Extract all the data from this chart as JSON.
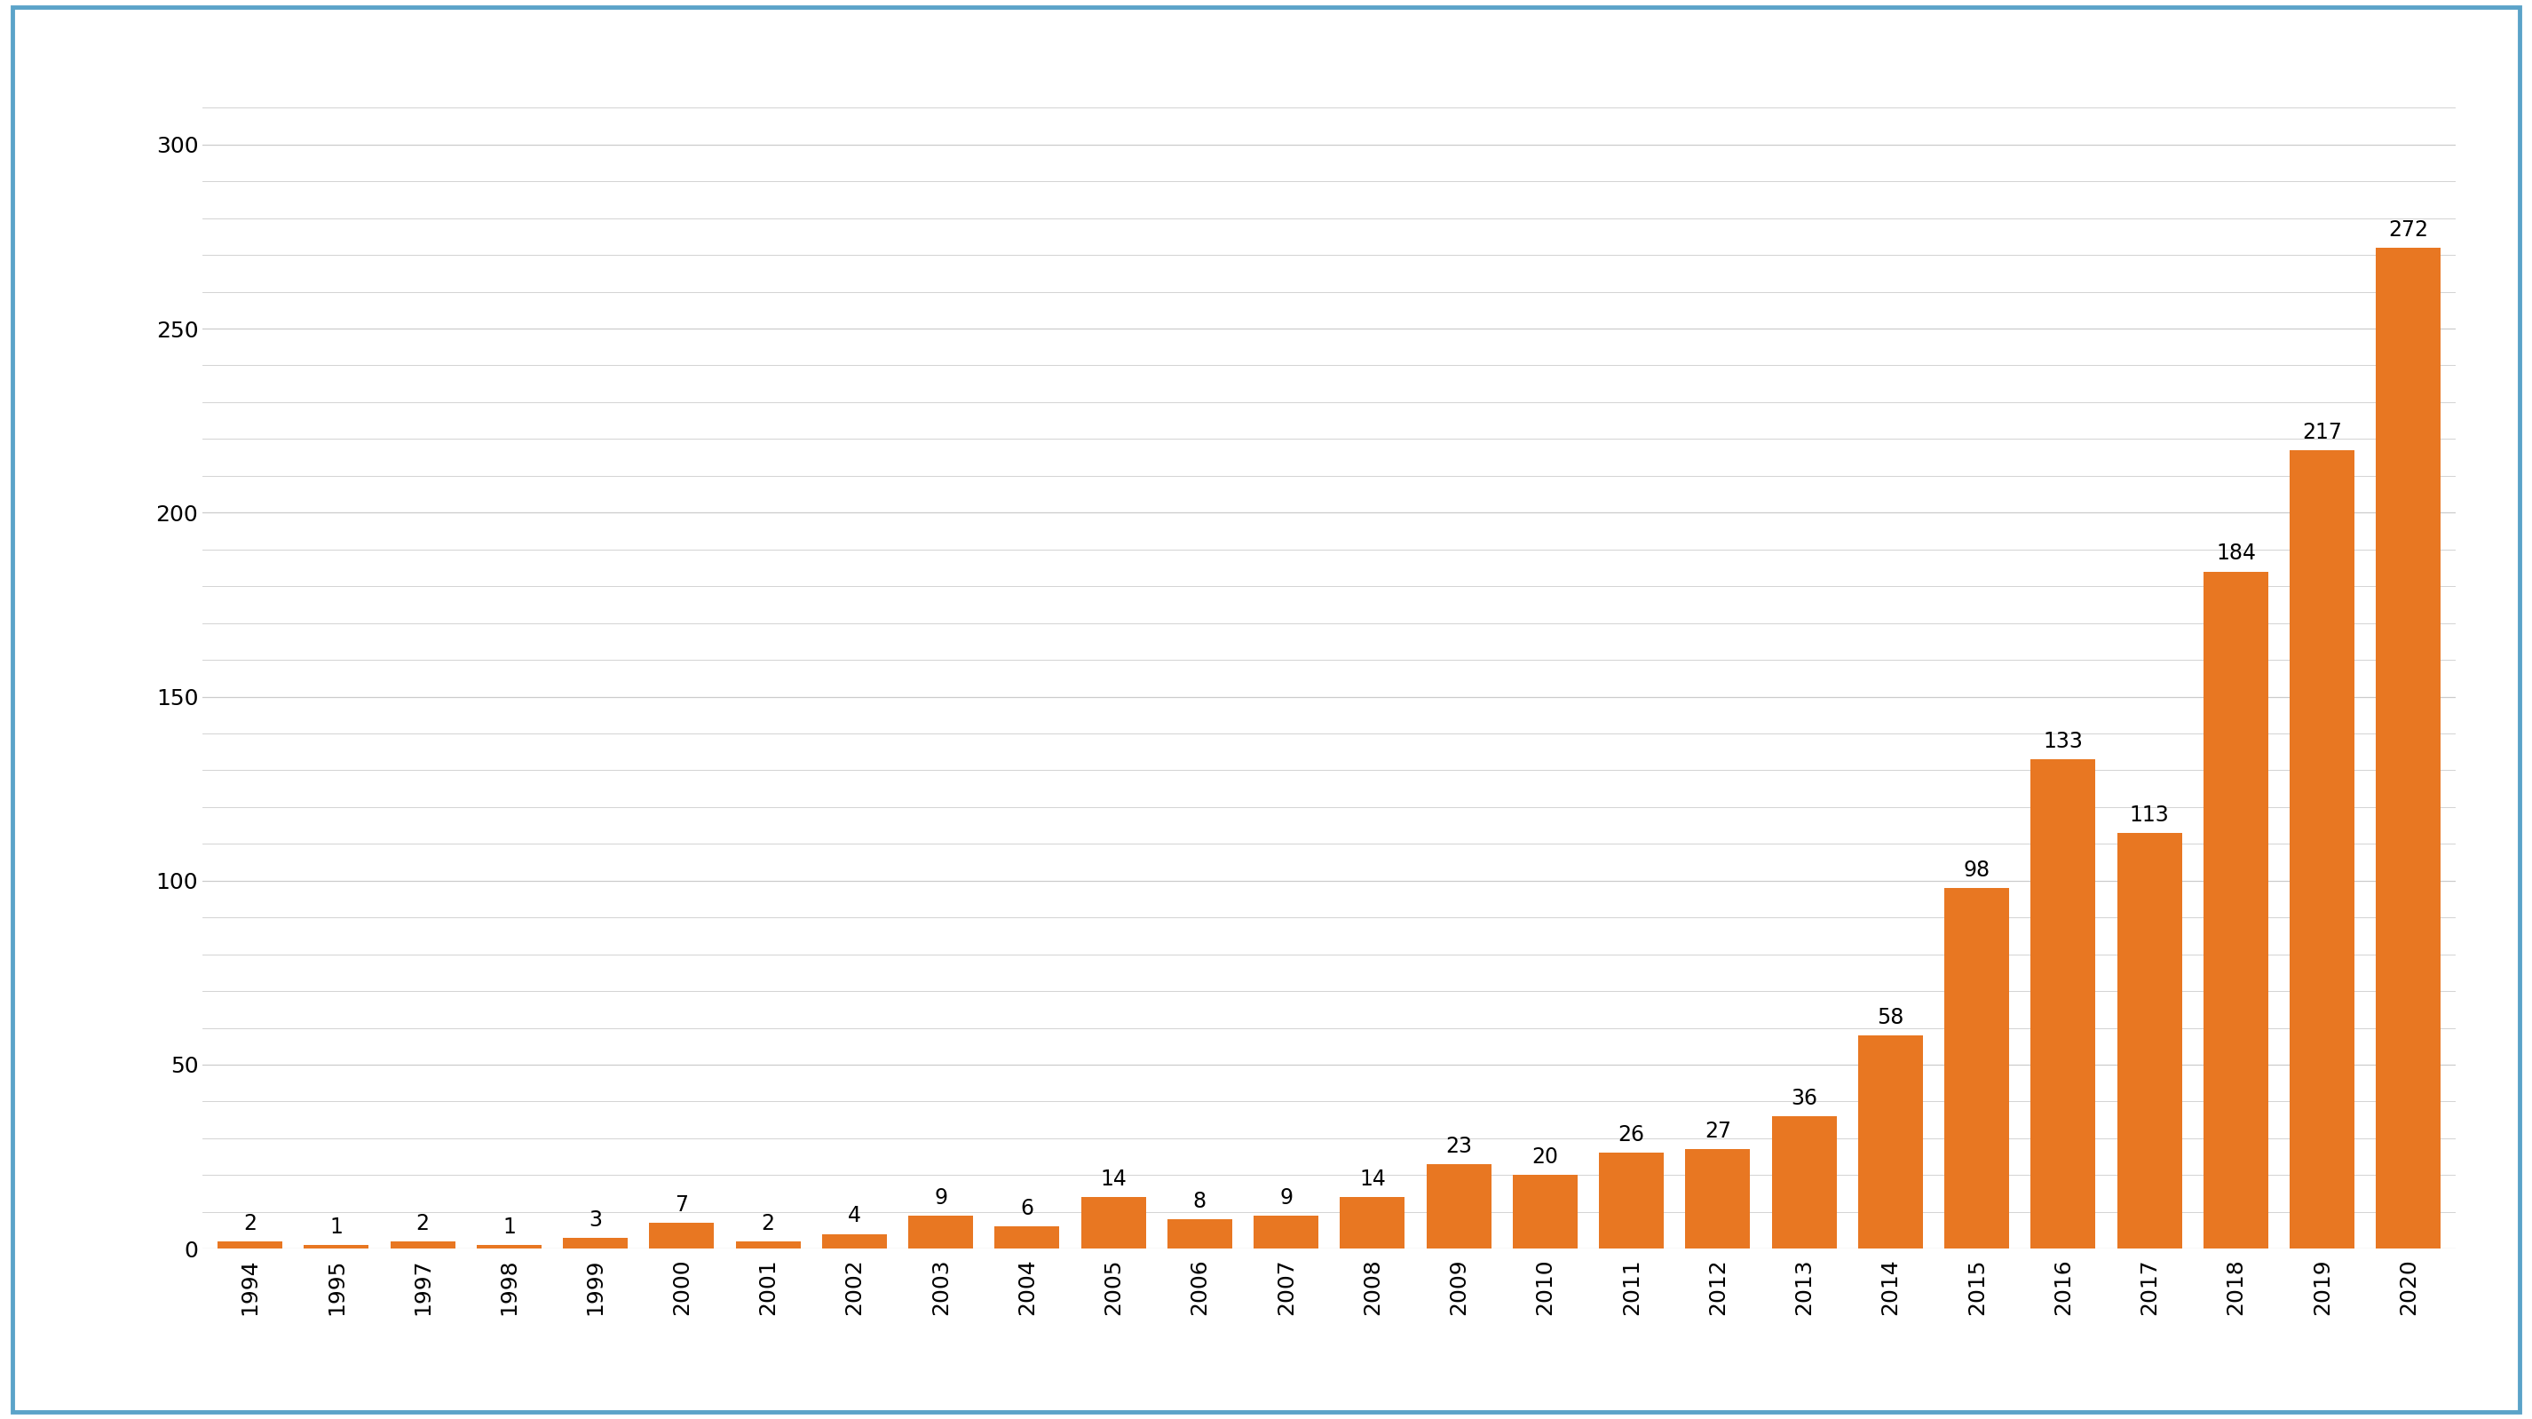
{
  "categories": [
    "1994",
    "1995",
    "1997",
    "1998",
    "1999",
    "2000",
    "2001",
    "2002",
    "2003",
    "2004",
    "2005",
    "2006",
    "2007",
    "2008",
    "2009",
    "2010",
    "2011",
    "2012",
    "2013",
    "2014",
    "2015",
    "2016",
    "2017",
    "2018",
    "2019",
    "2020"
  ],
  "values": [
    2,
    1,
    2,
    1,
    3,
    7,
    2,
    4,
    9,
    6,
    14,
    8,
    9,
    14,
    23,
    20,
    26,
    27,
    36,
    58,
    98,
    133,
    113,
    184,
    217,
    272
  ],
  "bar_color": "#E87722",
  "background_color": "#FFFFFF",
  "border_color": "#5BA3C9",
  "grid_color": "#CCCCCC",
  "ylim": [
    0,
    320
  ],
  "yticks": [
    0,
    50,
    100,
    150,
    200,
    250,
    300
  ],
  "minor_yticks": [
    10,
    20,
    30,
    40,
    60,
    70,
    80,
    90,
    110,
    120,
    130,
    140,
    160,
    170,
    180,
    190,
    210,
    220,
    230,
    240,
    260,
    270,
    280,
    290,
    310
  ],
  "tick_fontsize": 18,
  "value_label_fontsize": 17,
  "bar_width": 0.75
}
